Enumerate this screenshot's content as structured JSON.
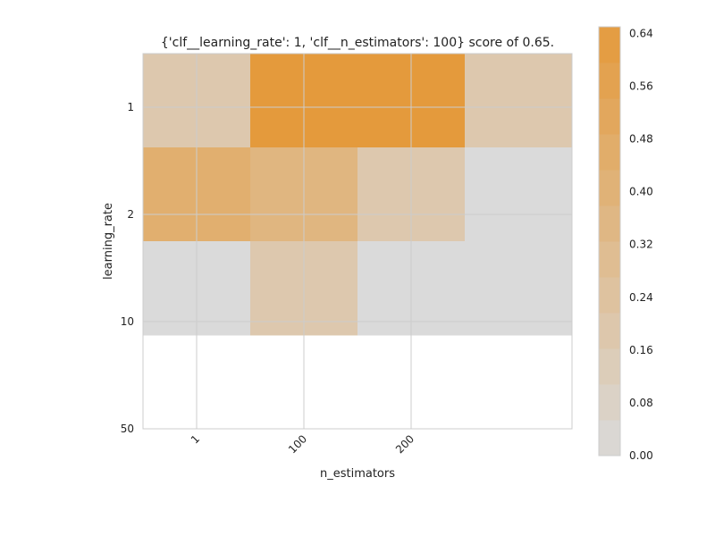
{
  "chart_data": {
    "type": "heatmap",
    "title": "{'clf__learning_rate': 1, 'clf__n_estimators': 100} score of 0.65.",
    "xlabel": "n_estimators",
    "ylabel": "learning_rate",
    "x_tick_labels": [
      "1",
      "100",
      "200"
    ],
    "y_tick_labels": [
      "1",
      "2",
      "10",
      "50"
    ],
    "grid": true,
    "colorbar": {
      "range": [
        0.0,
        0.65
      ],
      "tick_labels": [
        "0.64",
        "0.56",
        "0.48",
        "0.40",
        "0.32",
        "0.24",
        "0.16",
        "0.08",
        "0.00"
      ],
      "tick_values": [
        0.64,
        0.56,
        0.48,
        0.4,
        0.32,
        0.24,
        0.16,
        0.08,
        0.0
      ],
      "low_color": "#dadada",
      "high_color": "#e49a3c"
    },
    "cells": [
      [
        0.18,
        0.18,
        0.65,
        0.65,
        0.65,
        0.65,
        0.18,
        0.18
      ],
      [
        0.18,
        0.18,
        0.65,
        0.65,
        0.65,
        0.65,
        0.18,
        0.18
      ],
      [
        0.44,
        0.44,
        0.37,
        0.37,
        0.18,
        0.18,
        0.0,
        0.0
      ],
      [
        0.44,
        0.44,
        0.37,
        0.37,
        0.18,
        0.18,
        0.0,
        0.0
      ],
      [
        0.0,
        0.0,
        0.18,
        0.18,
        0.0,
        0.0,
        0.0,
        0.0
      ],
      [
        0.0,
        0.0,
        0.18,
        0.18,
        0.0,
        0.0,
        0.0,
        0.0
      ],
      [
        null,
        null,
        null,
        null,
        null,
        null,
        null,
        null
      ],
      [
        null,
        null,
        null,
        null,
        null,
        null,
        null,
        null
      ]
    ]
  }
}
